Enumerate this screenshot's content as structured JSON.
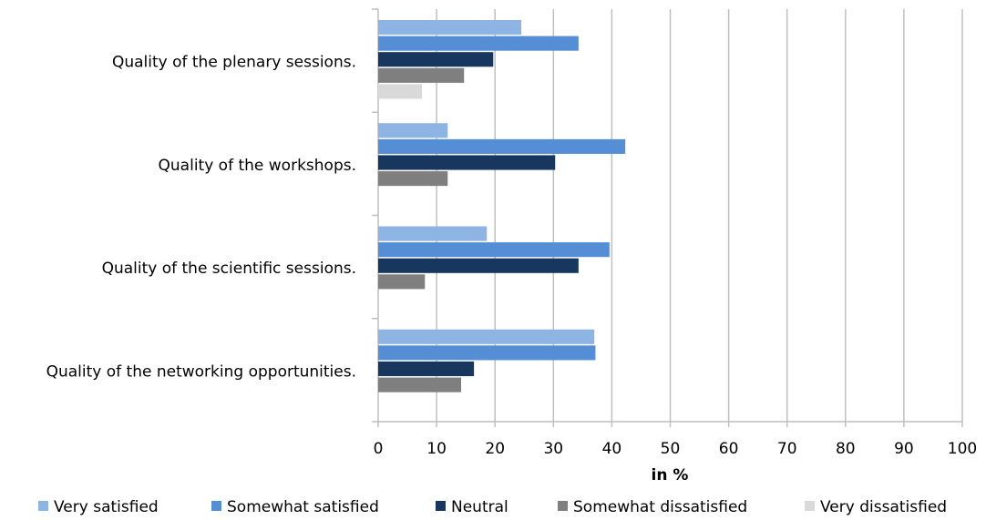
{
  "chart_data": {
    "type": "bar",
    "orientation": "horizontal",
    "categories": [
      "Quality of the plenary sessions.",
      "Quality of the workshops.",
      "Quality of the scientific sessions.",
      "Quality of the networking opportunities."
    ],
    "series": [
      {
        "name": "Very satisfied",
        "color": "#8db4e2",
        "values": [
          24.5,
          11.9,
          18.6,
          37
        ]
      },
      {
        "name": "Somewhat satisfied",
        "color": "#558ed5",
        "values": [
          34.3,
          42.3,
          39.6,
          37.2
        ]
      },
      {
        "name": "Neutral",
        "color": "#17375e",
        "values": [
          19.7,
          30.3,
          34.3,
          16.4
        ]
      },
      {
        "name": "Somewhat dissatisfied",
        "color": "#7f7f7f",
        "values": [
          14.7,
          11.9,
          8,
          14.2
        ]
      },
      {
        "name": "Very dissatisfied",
        "color": "#d9d9d9",
        "values": [
          7.5,
          0,
          0,
          0
        ]
      }
    ],
    "x_label": "in %",
    "xlim": [
      0,
      100
    ],
    "xticks": [
      0,
      10,
      20,
      30,
      40,
      50,
      60,
      70,
      80,
      90,
      100
    ],
    "grid": true,
    "legend": "bottom"
  }
}
